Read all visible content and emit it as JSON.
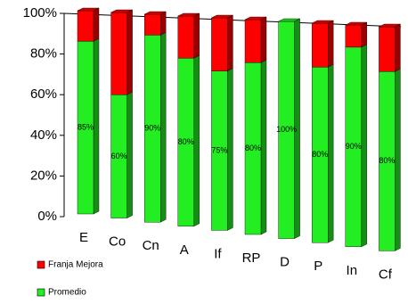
{
  "chart_data": {
    "type": "bar3d_stacked",
    "categories": [
      "E",
      "Co",
      "Cn",
      "A",
      "If",
      "RP",
      "D",
      "P",
      "In",
      "Cf"
    ],
    "series": [
      {
        "name": "Franja Mejora",
        "color": "#ff0000",
        "values": [
          15,
          40,
          10,
          20,
          25,
          20,
          0,
          20,
          10,
          20
        ]
      },
      {
        "name": "Promedio",
        "color": "#22ee22",
        "values": [
          85,
          60,
          90,
          80,
          75,
          80,
          100,
          80,
          90,
          80
        ],
        "value_labels": [
          "85%",
          "60%",
          "90%",
          "80%",
          "75%",
          "80%",
          "100%",
          "80%",
          "90%",
          "80%"
        ]
      }
    ],
    "ylim": [
      0,
      100
    ],
    "yticks": [
      {
        "value": 0,
        "label": "0%"
      },
      {
        "value": 20,
        "label": "20%"
      },
      {
        "value": 40,
        "label": "40%"
      },
      {
        "value": 60,
        "label": "60%"
      },
      {
        "value": 80,
        "label": "80%"
      },
      {
        "value": 100,
        "label": "100%"
      }
    ],
    "grid": false
  }
}
